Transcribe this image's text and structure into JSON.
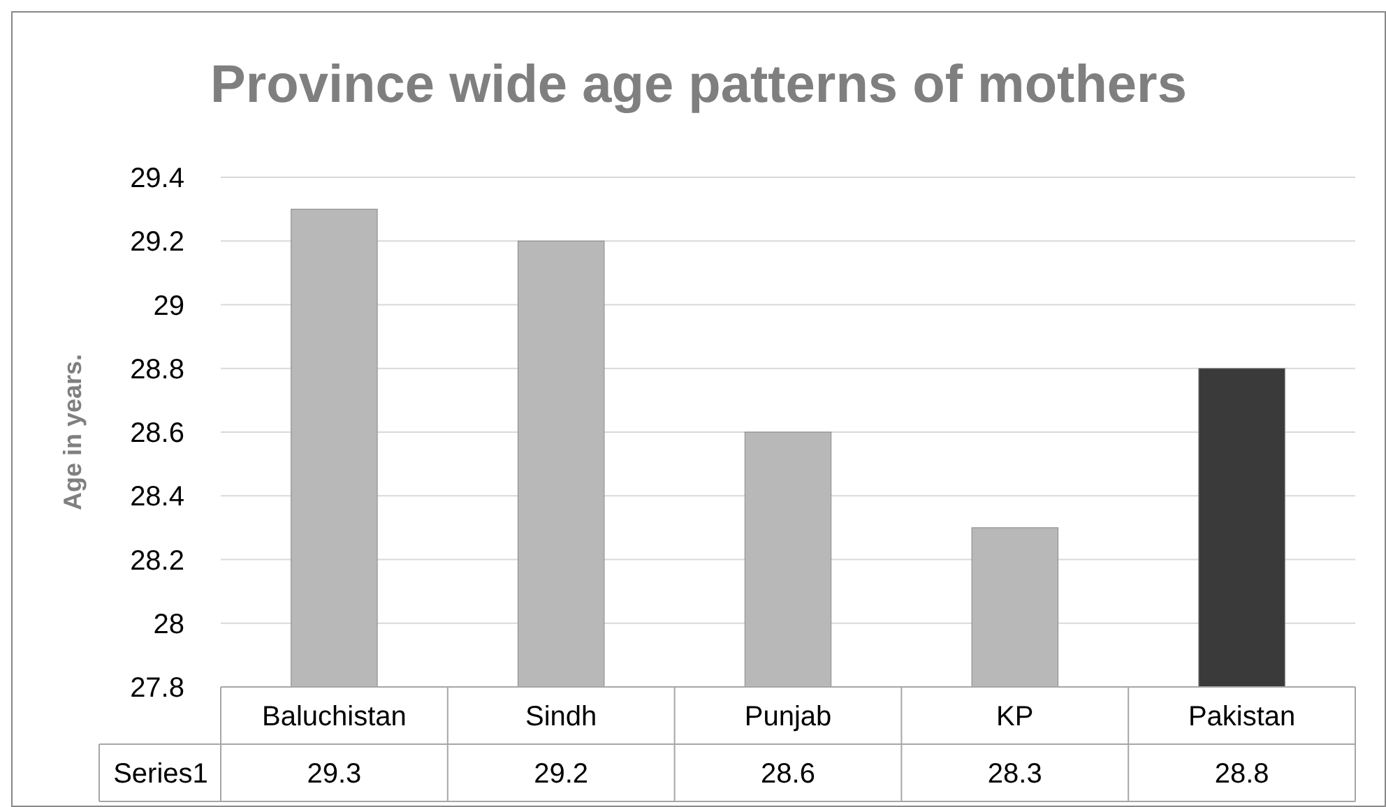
{
  "chart_data": {
    "type": "bar",
    "title": "Province wide age patterns of mothers",
    "ylabel": "Age in years.",
    "categories": [
      "Baluchistan",
      "Sindh",
      "Punjab",
      "KP",
      "Pakistan"
    ],
    "series": [
      {
        "name": "Series1",
        "colors": [
          "#b8b8b8",
          "#b8b8b8",
          "#b8b8b8",
          "#b8b8b8",
          "#3a3a3a"
        ],
        "values": [
          29.3,
          29.2,
          28.6,
          28.3,
          28.8
        ]
      }
    ],
    "ylim": [
      27.8,
      29.4
    ],
    "yticks": [
      27.8,
      28,
      28.2,
      28.4,
      28.6,
      28.8,
      29,
      29.2,
      29.4
    ],
    "grid": "y",
    "data_labels": true
  }
}
